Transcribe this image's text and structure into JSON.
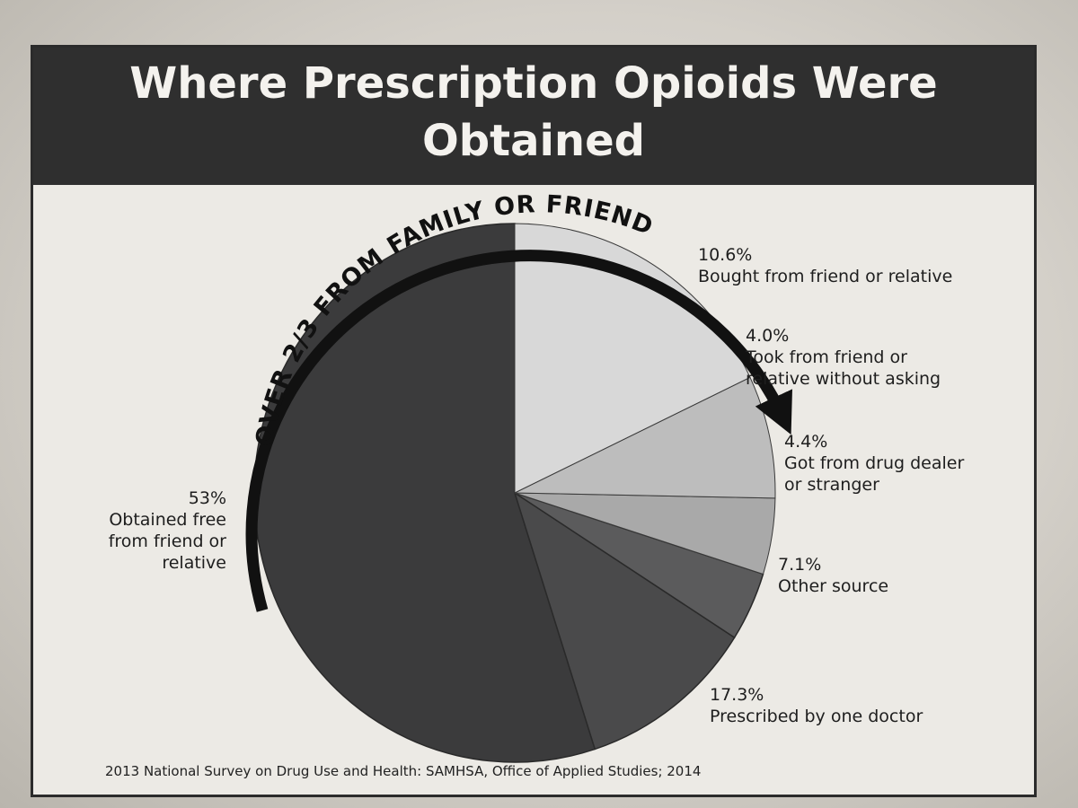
{
  "title_lines": [
    "Where Prescription Opioids Were",
    "Obtained"
  ],
  "arc_callout": "OVER 2/3 FROM FAMILY OR FRIEND",
  "source": "2013 National Survey on Drug Use and Health: SAMHSA, Office of Applied Studies; 2014",
  "chart_data": {
    "type": "pie",
    "title": "Where Prescription Opioids Were Obtained",
    "slices": [
      {
        "percent_label": "53%",
        "label_lines": [
          "Obtained free",
          "from friend or",
          "relative"
        ],
        "value": 53,
        "color": "#3b3b3c"
      },
      {
        "percent_label": "10.6%",
        "label_lines": [
          "Bought from friend or relative"
        ],
        "value": 10.6,
        "color": "#4a4a4b"
      },
      {
        "percent_label": "4.0%",
        "label_lines": [
          "Took from friend or",
          "relative without asking"
        ],
        "value": 4.0,
        "color": "#5b5b5c"
      },
      {
        "percent_label": "4.4%",
        "label_lines": [
          "Got from drug dealer",
          "or stranger"
        ],
        "value": 4.4,
        "color": "#a9a9a9"
      },
      {
        "percent_label": "7.1%",
        "label_lines": [
          "Other source"
        ],
        "value": 7.1,
        "color": "#bdbdbd"
      },
      {
        "percent_label": "17.3%",
        "label_lines": [
          "Prescribed by one doctor"
        ],
        "value": 17.3,
        "color": "#d8d8d8"
      }
    ]
  }
}
